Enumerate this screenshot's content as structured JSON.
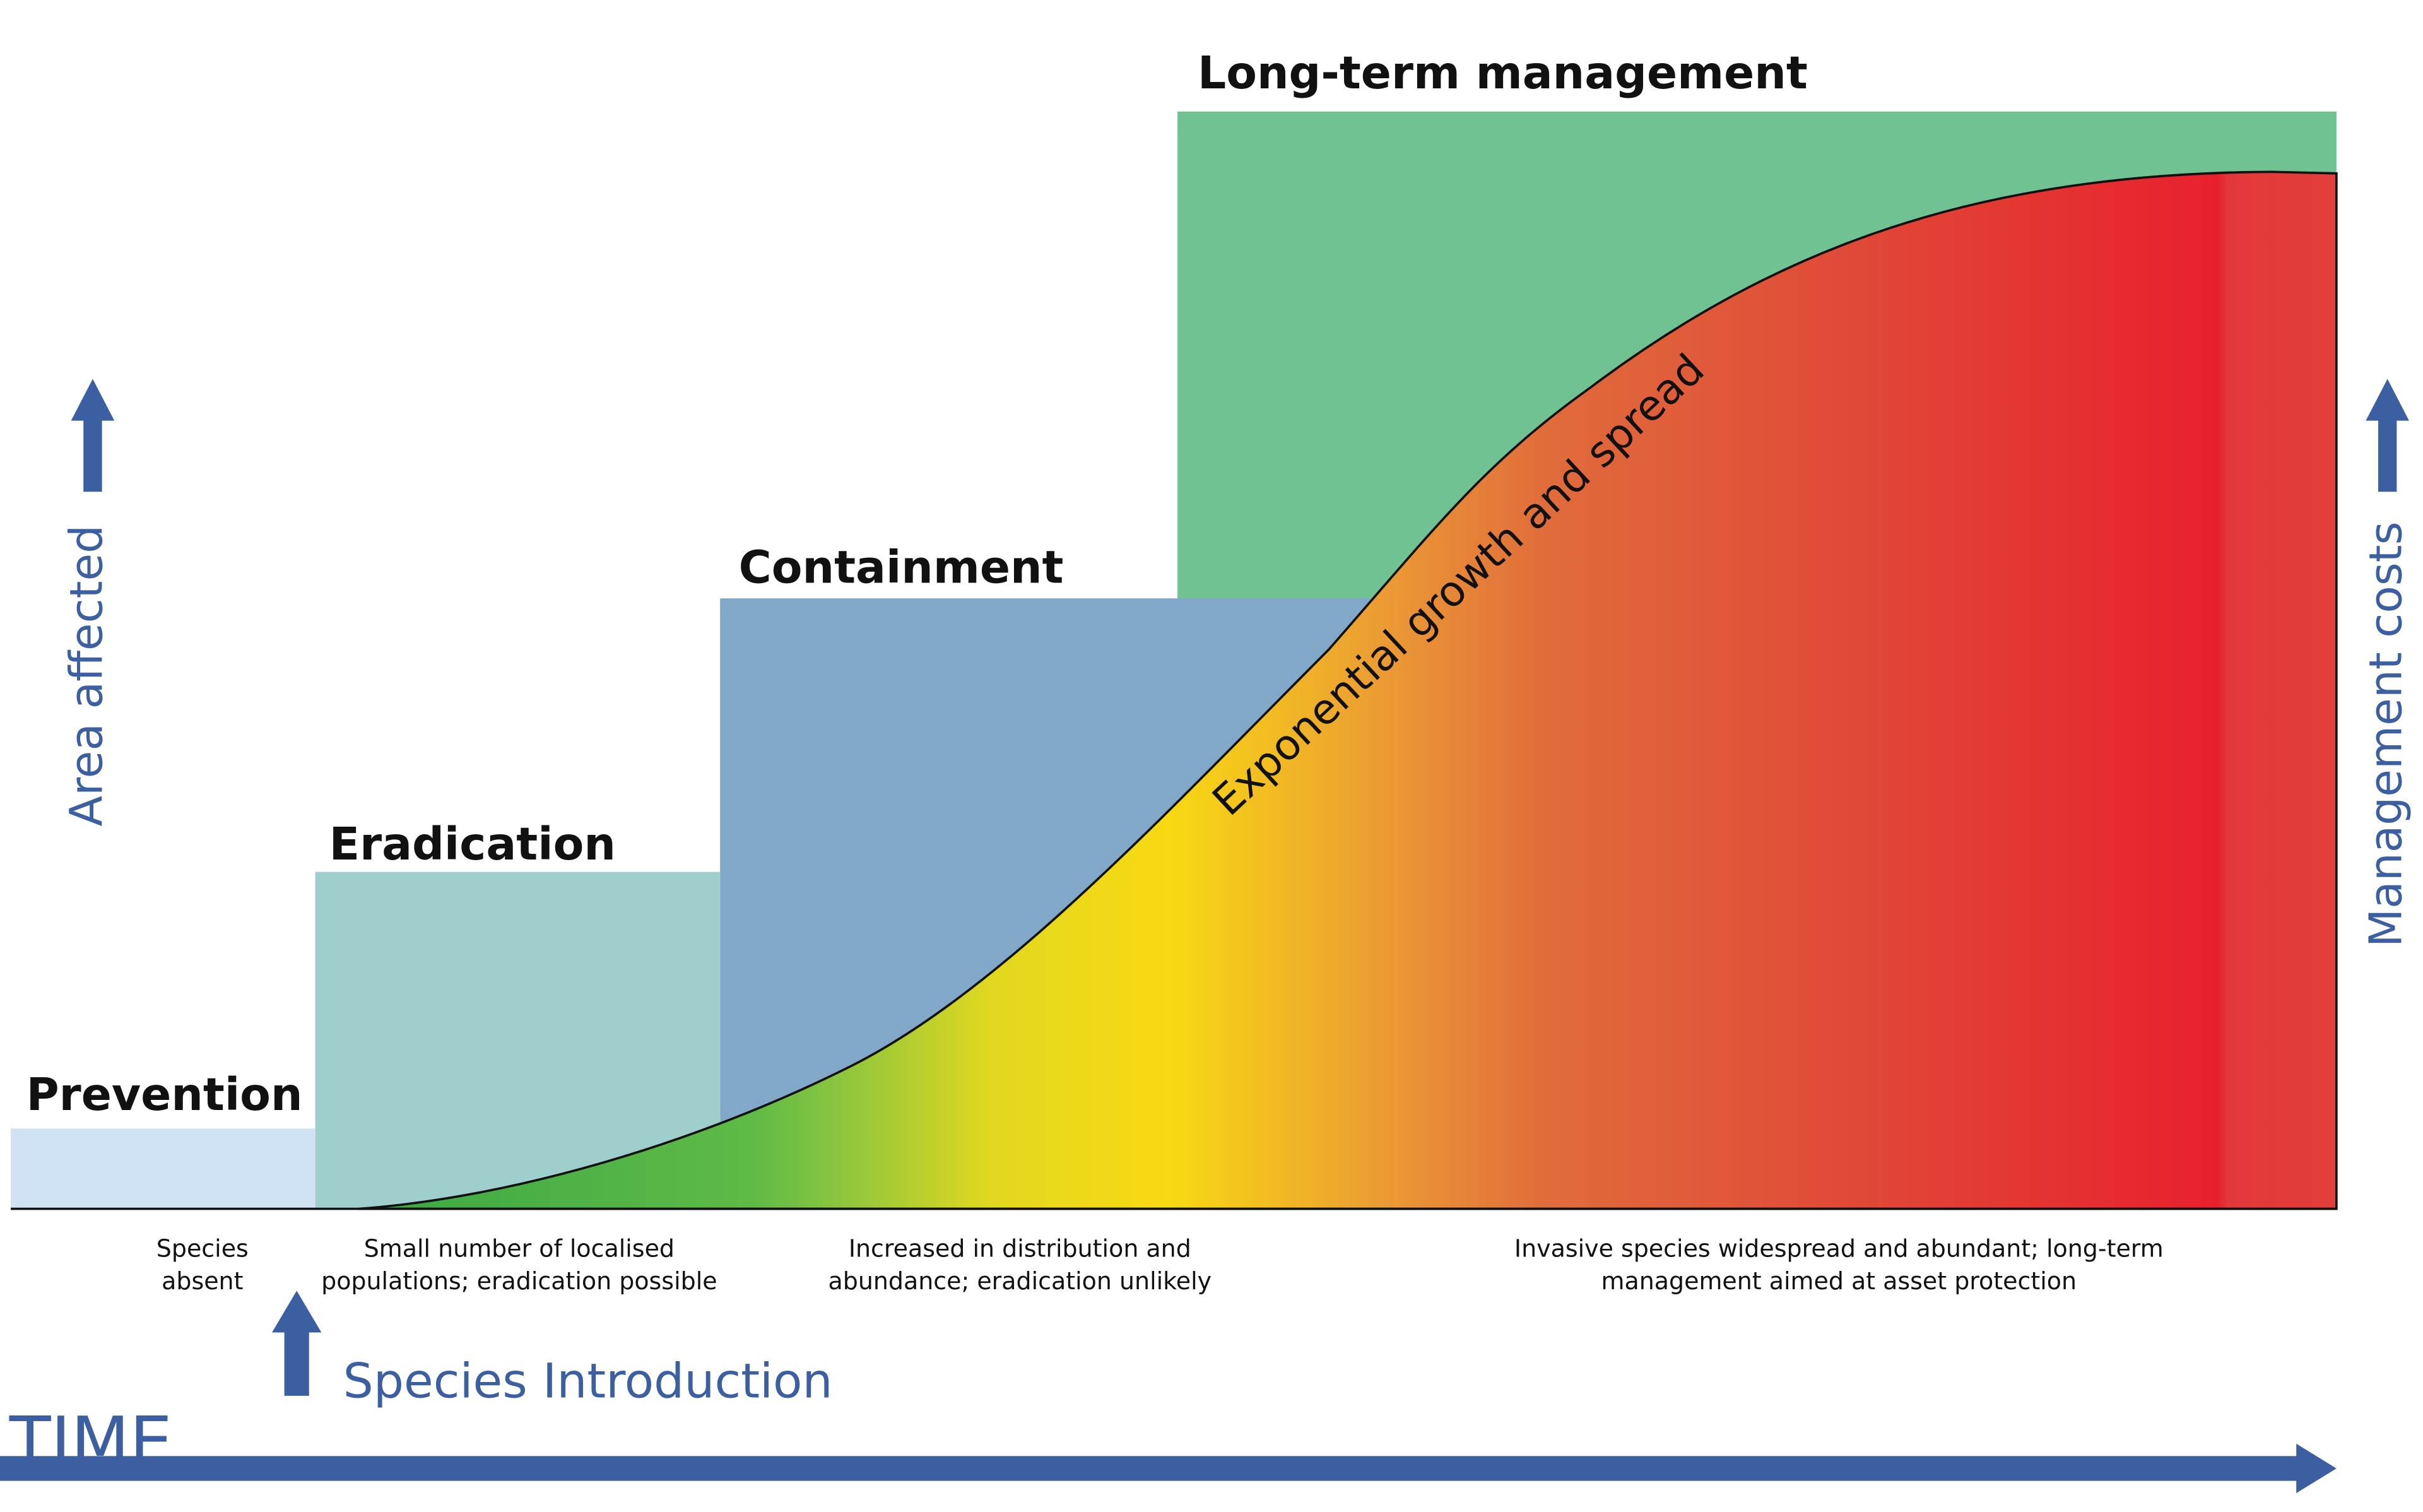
{
  "stages": [
    {
      "label": "Prevention",
      "description": [
        "Species",
        "absent"
      ]
    },
    {
      "label": "Eradication",
      "description": [
        "Small number of localised",
        "populations; eradication possible"
      ]
    },
    {
      "label": "Containment",
      "description": [
        "Increased in distribution and",
        "abundance; eradication unlikely"
      ]
    },
    {
      "label": "Long-term management",
      "description": [
        "Invasive species widespread and abundant; long-term",
        "management aimed at asset protection"
      ]
    }
  ],
  "curve_label": "Exponential growth and spread",
  "left_axis_label": "Area affected",
  "right_axis_label": "Management costs",
  "introduction_label": "Species Introduction",
  "time_label": "TIME"
}
